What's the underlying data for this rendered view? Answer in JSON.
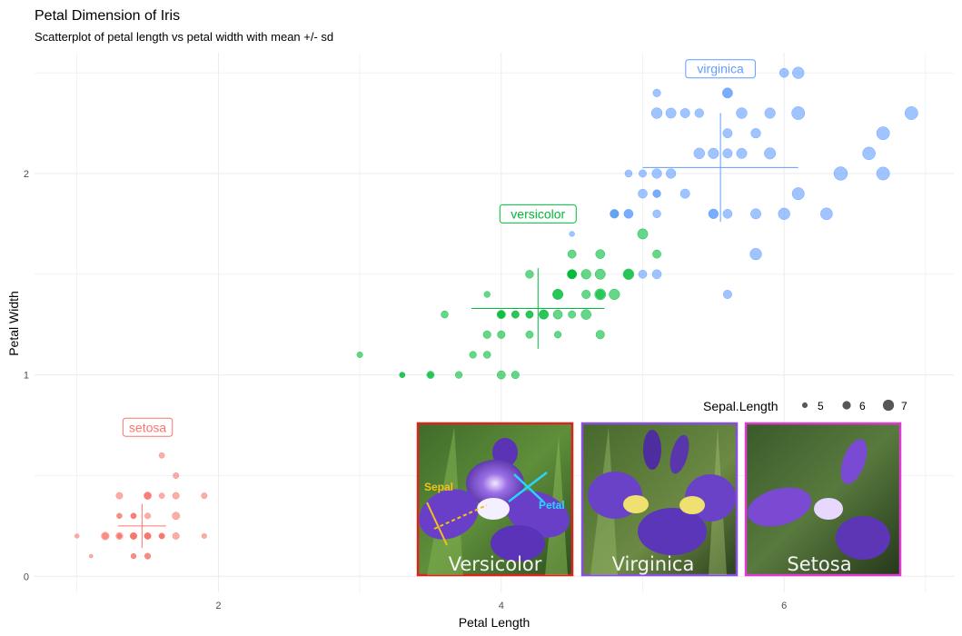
{
  "colors": {
    "setosa": "#F8766D",
    "versicolor": "#00BA38",
    "virginica": "#619CFF",
    "grid": "#ebebeb",
    "photo_border_versicolor": "#d9261c",
    "photo_border_virginica": "#8a4fe0",
    "photo_border_setosa": "#e03bd0"
  },
  "photos": [
    {
      "name": "versicolor-photo",
      "label": "Versicolor",
      "annot_sepal": "Sepal",
      "annot_petal": "Petal"
    },
    {
      "name": "virginica-photo",
      "label": "Virginica"
    },
    {
      "name": "setosa-photo",
      "label": "Setosa"
    }
  ],
  "chart_data": {
    "type": "scatter",
    "title": "Petal Dimension of Iris",
    "subtitle": "Scatterplot of petal length vs petal width with mean +/- sd",
    "xlabel": "Petal Length",
    "ylabel": "Petal Width",
    "xlim": [
      0.7,
      7.2
    ],
    "ylim": [
      -0.08,
      2.6
    ],
    "x_ticks": [
      2,
      4,
      6
    ],
    "y_ticks": [
      0,
      1,
      2
    ],
    "grid": true,
    "legend": {
      "title": "Sepal.Length",
      "placement": "right",
      "entries": [
        5,
        6,
        7
      ]
    },
    "series": [
      {
        "name": "setosa",
        "label_pos": [
          1.5,
          0.74
        ],
        "mean": [
          1.46,
          0.25
        ],
        "sd": [
          0.17,
          0.11
        ],
        "points": [
          [
            1.4,
            0.2,
            5.1
          ],
          [
            1.4,
            0.2,
            4.9
          ],
          [
            1.3,
            0.2,
            4.7
          ],
          [
            1.5,
            0.2,
            4.6
          ],
          [
            1.4,
            0.2,
            5.0
          ],
          [
            1.7,
            0.4,
            5.4
          ],
          [
            1.4,
            0.3,
            4.6
          ],
          [
            1.5,
            0.2,
            5.0
          ],
          [
            1.4,
            0.2,
            4.4
          ],
          [
            1.5,
            0.1,
            4.9
          ],
          [
            1.5,
            0.2,
            5.4
          ],
          [
            1.6,
            0.2,
            4.8
          ],
          [
            1.4,
            0.1,
            4.8
          ],
          [
            1.1,
            0.1,
            4.3
          ],
          [
            1.2,
            0.2,
            5.8
          ],
          [
            1.5,
            0.4,
            5.7
          ],
          [
            1.3,
            0.4,
            5.4
          ],
          [
            1.4,
            0.3,
            5.1
          ],
          [
            1.7,
            0.3,
            5.7
          ],
          [
            1.5,
            0.3,
            5.1
          ],
          [
            1.7,
            0.2,
            5.4
          ],
          [
            1.5,
            0.4,
            5.1
          ],
          [
            1.0,
            0.2,
            4.6
          ],
          [
            1.7,
            0.5,
            5.1
          ],
          [
            1.9,
            0.2,
            4.8
          ],
          [
            1.6,
            0.2,
            5.0
          ],
          [
            1.6,
            0.4,
            5.0
          ],
          [
            1.5,
            0.2,
            5.2
          ],
          [
            1.4,
            0.2,
            5.2
          ],
          [
            1.6,
            0.2,
            4.7
          ],
          [
            1.6,
            0.2,
            4.8
          ],
          [
            1.5,
            0.4,
            5.4
          ],
          [
            1.5,
            0.1,
            5.2
          ],
          [
            1.4,
            0.2,
            5.5
          ],
          [
            1.5,
            0.2,
            4.9
          ],
          [
            1.2,
            0.2,
            5.0
          ],
          [
            1.3,
            0.2,
            5.5
          ],
          [
            1.4,
            0.1,
            4.9
          ],
          [
            1.3,
            0.2,
            4.4
          ],
          [
            1.5,
            0.2,
            5.1
          ],
          [
            1.3,
            0.3,
            5.0
          ],
          [
            1.3,
            0.3,
            4.5
          ],
          [
            1.3,
            0.2,
            4.4
          ],
          [
            1.6,
            0.6,
            5.0
          ],
          [
            1.9,
            0.4,
            5.1
          ],
          [
            1.4,
            0.3,
            4.8
          ],
          [
            1.6,
            0.2,
            5.1
          ],
          [
            1.4,
            0.2,
            4.6
          ],
          [
            1.5,
            0.2,
            5.3
          ],
          [
            1.4,
            0.2,
            5.0
          ]
        ]
      },
      {
        "name": "versicolor",
        "label_pos": [
          4.26,
          1.8
        ],
        "mean": [
          4.26,
          1.33
        ],
        "sd": [
          0.47,
          0.2
        ],
        "points": [
          [
            4.7,
            1.4,
            7.0
          ],
          [
            4.5,
            1.5,
            6.4
          ],
          [
            4.9,
            1.5,
            6.9
          ],
          [
            4.0,
            1.3,
            5.5
          ],
          [
            4.6,
            1.5,
            6.5
          ],
          [
            4.5,
            1.3,
            5.7
          ],
          [
            4.7,
            1.6,
            6.3
          ],
          [
            3.3,
            1.0,
            4.9
          ],
          [
            4.6,
            1.3,
            6.6
          ],
          [
            3.9,
            1.4,
            5.2
          ],
          [
            3.5,
            1.0,
            5.0
          ],
          [
            4.2,
            1.5,
            5.9
          ],
          [
            4.0,
            1.0,
            6.0
          ],
          [
            4.7,
            1.4,
            6.1
          ],
          [
            3.6,
            1.3,
            5.6
          ],
          [
            4.4,
            1.4,
            6.7
          ],
          [
            4.5,
            1.5,
            5.6
          ],
          [
            4.1,
            1.0,
            5.8
          ],
          [
            4.5,
            1.5,
            6.2
          ],
          [
            3.9,
            1.1,
            5.6
          ],
          [
            4.8,
            1.8,
            5.9
          ],
          [
            4.0,
            1.3,
            6.1
          ],
          [
            4.9,
            1.5,
            6.3
          ],
          [
            4.7,
            1.2,
            6.1
          ],
          [
            4.3,
            1.3,
            6.4
          ],
          [
            4.4,
            1.4,
            6.6
          ],
          [
            4.8,
            1.4,
            6.8
          ],
          [
            5.0,
            1.7,
            6.7
          ],
          [
            4.5,
            1.5,
            6.0
          ],
          [
            3.5,
            1.0,
            5.7
          ],
          [
            3.8,
            1.1,
            5.5
          ],
          [
            3.7,
            1.0,
            5.5
          ],
          [
            3.9,
            1.2,
            5.8
          ],
          [
            5.1,
            1.6,
            6.0
          ],
          [
            4.5,
            1.5,
            5.4
          ],
          [
            4.5,
            1.6,
            6.0
          ],
          [
            4.7,
            1.5,
            6.7
          ],
          [
            4.4,
            1.3,
            6.3
          ],
          [
            4.1,
            1.3,
            5.6
          ],
          [
            4.0,
            1.3,
            5.5
          ],
          [
            4.4,
            1.2,
            5.5
          ],
          [
            4.6,
            1.4,
            6.1
          ],
          [
            4.0,
            1.2,
            5.8
          ],
          [
            3.3,
            1.0,
            5.0
          ],
          [
            4.2,
            1.3,
            5.6
          ],
          [
            4.2,
            1.2,
            5.7
          ],
          [
            4.2,
            1.3,
            5.7
          ],
          [
            4.3,
            1.3,
            6.2
          ],
          [
            3.0,
            1.1,
            5.1
          ],
          [
            4.1,
            1.3,
            5.7
          ]
        ]
      },
      {
        "name": "virginica",
        "label_pos": [
          5.55,
          2.52
        ],
        "mean": [
          5.55,
          2.03
        ],
        "sd": [
          0.55,
          0.27
        ],
        "points": [
          [
            6.0,
            2.5,
            6.3
          ],
          [
            5.1,
            1.9,
            5.8
          ],
          [
            5.9,
            2.1,
            7.1
          ],
          [
            5.6,
            1.8,
            6.3
          ],
          [
            5.8,
            2.2,
            6.5
          ],
          [
            6.6,
            2.1,
            7.6
          ],
          [
            4.5,
            1.7,
            4.9
          ],
          [
            6.3,
            1.8,
            7.3
          ],
          [
            5.8,
            1.8,
            6.7
          ],
          [
            6.1,
            2.5,
            7.2
          ],
          [
            5.1,
            2.0,
            6.5
          ],
          [
            5.3,
            1.9,
            6.4
          ],
          [
            5.5,
            2.1,
            6.8
          ],
          [
            5.0,
            2.0,
            5.7
          ],
          [
            5.1,
            2.4,
            5.8
          ],
          [
            5.3,
            2.3,
            6.4
          ],
          [
            5.5,
            1.8,
            6.5
          ],
          [
            6.7,
            2.2,
            7.7
          ],
          [
            6.9,
            2.3,
            7.7
          ],
          [
            5.0,
            1.5,
            6.0
          ],
          [
            5.7,
            2.3,
            6.9
          ],
          [
            4.9,
            2.0,
            5.6
          ],
          [
            6.7,
            2.0,
            7.7
          ],
          [
            4.9,
            1.8,
            6.3
          ],
          [
            5.7,
            2.1,
            6.7
          ],
          [
            6.0,
            1.8,
            7.2
          ],
          [
            4.8,
            1.8,
            6.2
          ],
          [
            4.9,
            1.8,
            6.1
          ],
          [
            5.6,
            2.1,
            6.4
          ],
          [
            5.8,
            1.6,
            7.2
          ],
          [
            6.1,
            1.9,
            7.4
          ],
          [
            6.4,
            2.0,
            7.9
          ],
          [
            5.6,
            2.2,
            6.4
          ],
          [
            5.1,
            1.5,
            6.3
          ],
          [
            5.6,
            1.4,
            6.1
          ],
          [
            6.1,
            2.3,
            7.7
          ],
          [
            5.6,
            2.4,
            6.3
          ],
          [
            5.5,
            1.8,
            6.4
          ],
          [
            4.8,
            1.8,
            6.0
          ],
          [
            5.4,
            2.1,
            6.9
          ],
          [
            5.6,
            2.4,
            6.7
          ],
          [
            5.1,
            2.3,
            6.9
          ],
          [
            5.1,
            1.9,
            5.8
          ],
          [
            5.9,
            2.3,
            6.8
          ],
          [
            5.7,
            2.5,
            6.7
          ],
          [
            5.2,
            2.3,
            6.7
          ],
          [
            5.0,
            1.9,
            6.3
          ],
          [
            5.2,
            2.0,
            6.5
          ],
          [
            5.4,
            2.3,
            6.2
          ],
          [
            5.1,
            1.8,
            5.9
          ]
        ]
      }
    ]
  }
}
